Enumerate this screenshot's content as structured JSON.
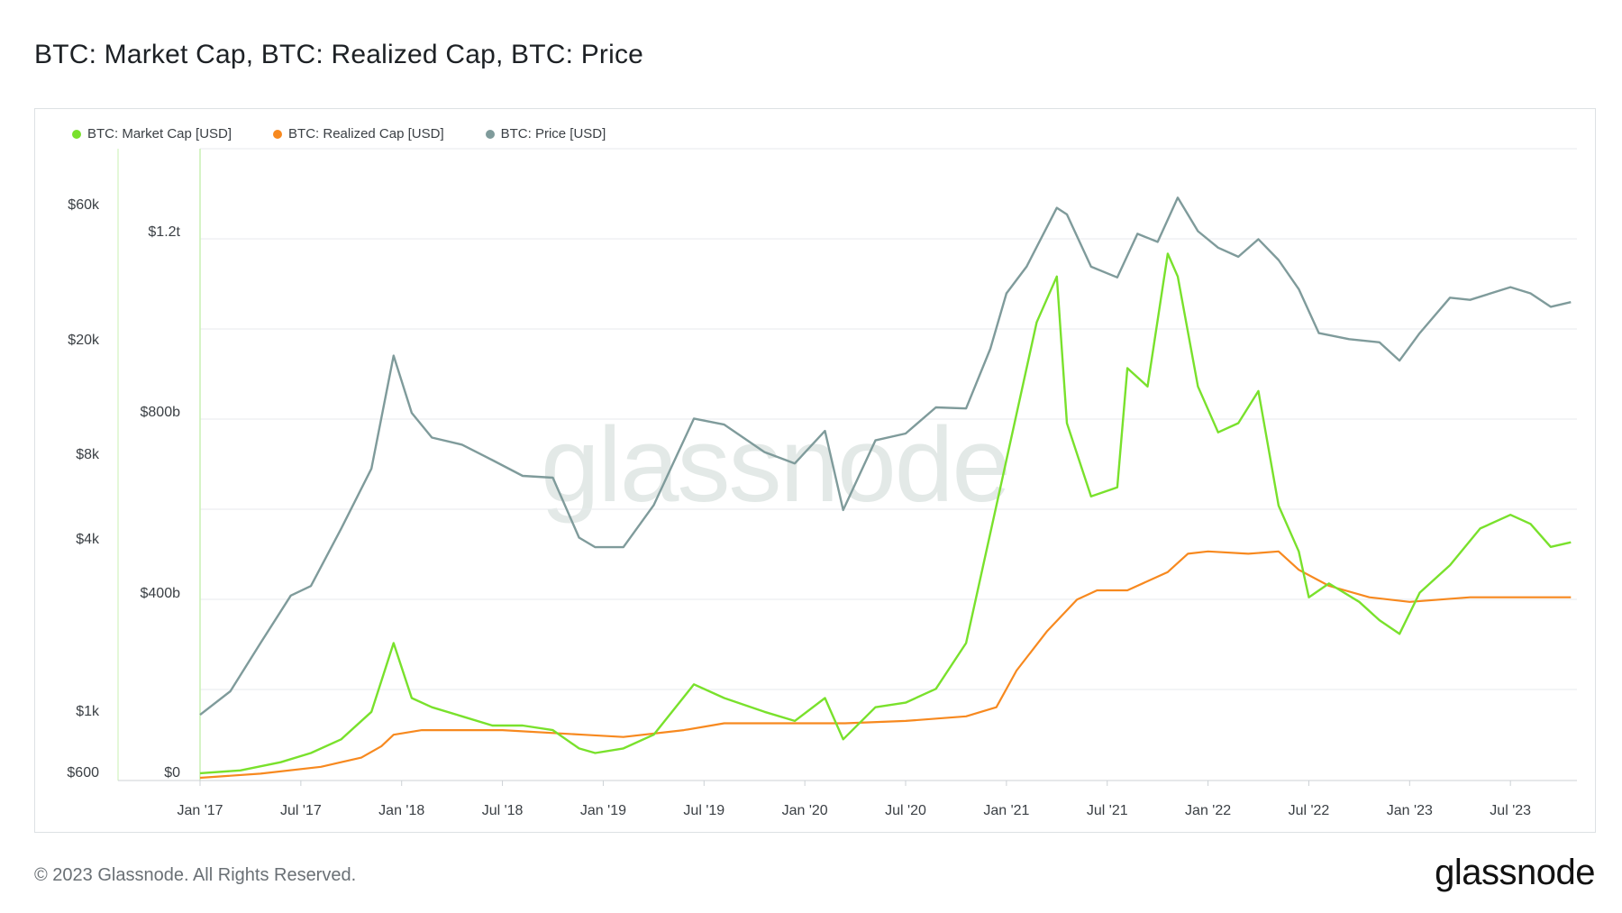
{
  "title": "BTC: Market Cap, BTC: Realized Cap, BTC: Price",
  "footer": "© 2023 Glassnode. All Rights Reserved.",
  "brand": "glassnode",
  "watermark": "glassnode",
  "colors": {
    "market_cap": "#79e12c",
    "realized_cap": "#f7891f",
    "price": "#7f9b9b",
    "grid": "#e7eaec",
    "axis_line": "#c9f0b3"
  },
  "chart_data": {
    "type": "line",
    "title": "BTC: Market Cap, BTC: Realized Cap, BTC: Price",
    "xlabel": "",
    "legend_position": "top-left",
    "grid": true,
    "x_ticks": [
      "Jan '17",
      "Jul '17",
      "Jan '18",
      "Jul '18",
      "Jan '19",
      "Jul '19",
      "Jan '20",
      "Jul '20",
      "Jan '21",
      "Jul '21",
      "Jan '22",
      "Jul '22",
      "Jan '23",
      "Jul '23"
    ],
    "x_range": [
      2017.0,
      2023.83
    ],
    "y_left": {
      "scale": "log",
      "ticks": [
        "$600",
        "$1k",
        "$4k",
        "$8k",
        "$20k",
        "$60k"
      ],
      "range": [
        600,
        80000
      ]
    },
    "y_right": {
      "scale": "linear",
      "ticks": [
        "$0",
        "$400b",
        "$800b",
        "$1.2t"
      ],
      "range": [
        0,
        1200000000000.0
      ]
    },
    "series": [
      {
        "name": "BTC: Market Cap [USD]",
        "axis": "right",
        "x": [
          2017.0,
          2017.2,
          2017.4,
          2017.55,
          2017.7,
          2017.85,
          2017.96,
          2018.05,
          2018.15,
          2018.3,
          2018.45,
          2018.6,
          2018.75,
          2018.88,
          2018.96,
          2019.1,
          2019.25,
          2019.45,
          2019.6,
          2019.8,
          2019.95,
          2020.1,
          2020.19,
          2020.35,
          2020.5,
          2020.65,
          2020.8,
          2020.92,
          2021.0,
          2021.05,
          2021.15,
          2021.25,
          2021.3,
          2021.42,
          2021.55,
          2021.6,
          2021.7,
          2021.8,
          2021.85,
          2021.95,
          2022.05,
          2022.15,
          2022.25,
          2022.35,
          2022.45,
          2022.5,
          2022.6,
          2022.75,
          2022.85,
          2022.95,
          2023.05,
          2023.2,
          2023.35,
          2023.5,
          2023.6,
          2023.7,
          2023.8
        ],
        "values": [
          16000000000.0,
          22000000000.0,
          40000000000.0,
          60000000000.0,
          90000000000.0,
          150000000000.0,
          300000000000.0,
          180000000000.0,
          160000000000.0,
          140000000000.0,
          120000000000.0,
          120000000000.0,
          110000000000.0,
          70000000000.0,
          60000000000.0,
          70000000000.0,
          100000000000.0,
          210000000000.0,
          180000000000.0,
          150000000000.0,
          130000000000.0,
          180000000000.0,
          90000000000.0,
          160000000000.0,
          170000000000.0,
          200000000000.0,
          300000000000.0,
          540000000000.0,
          700000000000.0,
          800000000000.0,
          1000000000000.0,
          1100000000000.0,
          780000000000.0,
          620000000000.0,
          640000000000.0,
          900000000000.0,
          860000000000.0,
          1150000000000.0,
          1100000000000.0,
          860000000000.0,
          760000000000.0,
          780000000000.0,
          850000000000.0,
          600000000000.0,
          500000000000.0,
          400000000000.0,
          430000000000.0,
          390000000000.0,
          350000000000.0,
          320000000000.0,
          410000000000.0,
          470000000000.0,
          550000000000.0,
          580000000000.0,
          560000000000.0,
          510000000000.0,
          520000000000.0
        ]
      },
      {
        "name": "BTC: Realized Cap [USD]",
        "axis": "right",
        "x": [
          2017.0,
          2017.3,
          2017.6,
          2017.8,
          2017.9,
          2017.96,
          2018.1,
          2018.5,
          2018.9,
          2019.1,
          2019.4,
          2019.6,
          2019.9,
          2020.2,
          2020.5,
          2020.8,
          2020.95,
          2021.05,
          2021.2,
          2021.35,
          2021.45,
          2021.6,
          2021.8,
          2021.9,
          2022.0,
          2022.2,
          2022.35,
          2022.45,
          2022.6,
          2022.8,
          2023.0,
          2023.3,
          2023.6,
          2023.8
        ],
        "values": [
          6000000000.0,
          15000000000.0,
          30000000000.0,
          50000000000.0,
          75000000000.0,
          100000000000.0,
          110000000000.0,
          110000000000.0,
          100000000000.0,
          95000000000.0,
          110000000000.0,
          125000000000.0,
          125000000000.0,
          125000000000.0,
          130000000000.0,
          140000000000.0,
          160000000000.0,
          240000000000.0,
          325000000000.0,
          395000000000.0,
          415000000000.0,
          415000000000.0,
          455000000000.0,
          495000000000.0,
          500000000000.0,
          495000000000.0,
          500000000000.0,
          460000000000.0,
          425000000000.0,
          400000000000.0,
          390000000000.0,
          400000000000.0,
          400000000000.0,
          400000000000.0
        ]
      },
      {
        "name": "BTC: Price [USD]",
        "axis": "left",
        "x": [
          2017.0,
          2017.15,
          2017.3,
          2017.45,
          2017.55,
          2017.7,
          2017.85,
          2017.96,
          2018.05,
          2018.15,
          2018.3,
          2018.45,
          2018.6,
          2018.75,
          2018.88,
          2018.96,
          2019.1,
          2019.25,
          2019.45,
          2019.6,
          2019.8,
          2019.95,
          2020.1,
          2020.19,
          2020.35,
          2020.5,
          2020.65,
          2020.8,
          2020.92,
          2021.0,
          2021.1,
          2021.25,
          2021.3,
          2021.42,
          2021.55,
          2021.65,
          2021.75,
          2021.85,
          2021.95,
          2022.05,
          2022.15,
          2022.25,
          2022.35,
          2022.45,
          2022.55,
          2022.7,
          2022.85,
          2022.95,
          2023.05,
          2023.2,
          2023.3,
          2023.5,
          2023.6,
          2023.7,
          2023.8
        ],
        "values": [
          950,
          1150,
          1700,
          2500,
          2700,
          4300,
          7000,
          17500,
          11000,
          9000,
          8500,
          7500,
          6600,
          6500,
          4000,
          3700,
          3700,
          5200,
          10500,
          10000,
          8000,
          7300,
          9500,
          5000,
          8800,
          9300,
          11500,
          11400,
          18500,
          29000,
          36000,
          58000,
          55000,
          36000,
          33000,
          47000,
          44000,
          63000,
          48000,
          42000,
          39000,
          45000,
          38000,
          30000,
          21000,
          20000,
          19500,
          16800,
          21000,
          28000,
          27500,
          30500,
          29000,
          26000,
          27000
        ]
      }
    ]
  }
}
